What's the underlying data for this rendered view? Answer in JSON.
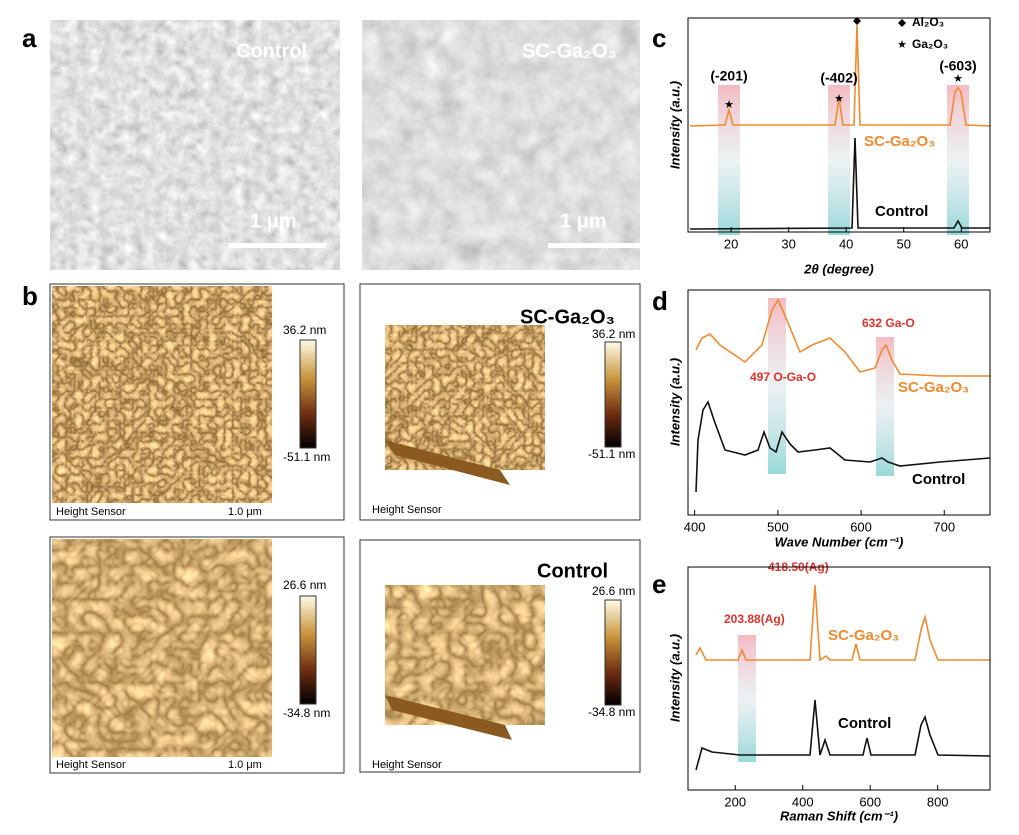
{
  "figure": {
    "a": {
      "label": "a",
      "left": {
        "caption": "Control",
        "scale_bar": "1 μm"
      },
      "right": {
        "caption": "SC-Ga₂O₃",
        "scale_bar": "1 μm"
      }
    },
    "b": {
      "label": "b",
      "sc": {
        "caption": "SC-Ga₂O₃",
        "colorbar_max": "36.2 nm",
        "colorbar_min": "-51.1 nm",
        "sensor": "Height Sensor",
        "scale": "1.0 μm"
      },
      "control": {
        "caption": "Control",
        "colorbar_max": "26.6 nm",
        "colorbar_min": "-34.8 nm",
        "sensor": "Height Sensor",
        "scale": "1.0 μm"
      }
    },
    "c": {
      "label": "c",
      "ylabel": "Intensity (a.u.)",
      "xlabel": "2θ (degree)",
      "xlim": [
        12.5,
        65
      ],
      "xticks": [
        20,
        30,
        40,
        50,
        60
      ],
      "legend": [
        "Al₂O₃",
        "Ga₂O₃"
      ],
      "peaks": [
        "(-201)",
        "(-402)",
        "(-603)"
      ],
      "series": [
        "SC-Ga₂O₃",
        "Control"
      ]
    },
    "d": {
      "label": "d",
      "ylabel": "Intensity (a.u.)",
      "xlabel": "Wave Number (cm⁻¹)",
      "xlim": [
        392,
        755
      ],
      "xticks": [
        400,
        500,
        600,
        700
      ],
      "annotations": [
        "497 O-Ga-O",
        "632 Ga-O"
      ],
      "series": [
        "SC-Ga₂O₃",
        "Control"
      ]
    },
    "e": {
      "label": "e",
      "ylabel": "Intensity (a.u.)",
      "xlabel": "Raman Shift (cm⁻¹)",
      "xlim": [
        60,
        955
      ],
      "xticks": [
        200,
        400,
        600,
        800
      ],
      "annotations": [
        "418.50(Ag)",
        "203.88(Ag)"
      ],
      "series": [
        "SC-Ga₂O₃",
        "Control"
      ]
    }
  }
}
